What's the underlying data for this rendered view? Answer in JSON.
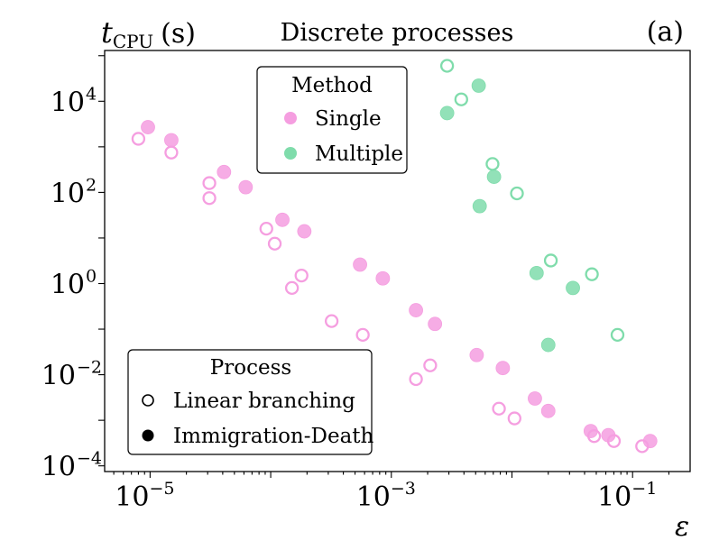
{
  "chart_data": {
    "type": "scatter",
    "title": "Discrete processes",
    "panel_label": "(a)",
    "ylabel": "t_CPU (s)",
    "ylabel_main": "t",
    "ylabel_sub": "CPU",
    "ylabel_unit": "(s)",
    "xlabel": "ε",
    "xscale": "log",
    "yscale": "log",
    "xlim": [
      4.2e-06,
      0.3
    ],
    "ylim": [
      7.5e-05,
      130000.0
    ],
    "x_ticks": [
      {
        "base": "10",
        "exp": "−5",
        "value": 1e-05
      },
      {
        "base": "10",
        "exp": "−3",
        "value": 0.001
      },
      {
        "base": "10",
        "exp": "−1",
        "value": 0.1
      }
    ],
    "y_ticks": [
      {
        "base": "10",
        "exp": "4",
        "value": 10000.0
      },
      {
        "base": "10",
        "exp": "2",
        "value": 100.0
      },
      {
        "base": "10",
        "exp": "0",
        "value": 1
      },
      {
        "base": "10",
        "exp": "−2",
        "value": 0.01
      },
      {
        "base": "10",
        "exp": "−4",
        "value": 0.0001
      }
    ],
    "colors": {
      "Single": "#f59ee0",
      "Multiple": "#7fdcab"
    },
    "legend_method": {
      "title": "Method",
      "entries": [
        "Single",
        "Multiple"
      ],
      "location": "upper-center"
    },
    "legend_process": {
      "title": "Process",
      "entries": [
        "Linear branching",
        "Immigration-Death"
      ],
      "location": "lower-left"
    },
    "series": [
      {
        "name": "Single / Linear branching",
        "method": "Single",
        "process": "Linear branching",
        "filled": false,
        "points": [
          [
            8e-06,
            1500
          ],
          [
            1.5e-05,
            750
          ],
          [
            3.1e-05,
            160
          ],
          [
            3.1e-05,
            75
          ],
          [
            9.2e-05,
            16
          ],
          [
            0.000108,
            7.5
          ],
          [
            0.00015,
            0.8
          ],
          [
            0.00018,
            1.5
          ],
          [
            0.00032,
            0.15
          ],
          [
            0.00058,
            0.075
          ],
          [
            0.0016,
            0.008
          ],
          [
            0.0021,
            0.016
          ],
          [
            0.0078,
            0.0018
          ],
          [
            0.0105,
            0.0011
          ],
          [
            0.048,
            0.00045
          ],
          [
            0.07,
            0.00035
          ],
          [
            0.12,
            0.00027
          ]
        ]
      },
      {
        "name": "Single / Immigration-Death",
        "method": "Single",
        "process": "Immigration-Death",
        "filled": true,
        "points": [
          [
            9.6e-06,
            2700
          ],
          [
            1.5e-05,
            1400
          ],
          [
            4.1e-05,
            280
          ],
          [
            6.2e-05,
            130
          ],
          [
            0.000125,
            25
          ],
          [
            0.00019,
            14
          ],
          [
            0.00055,
            2.6
          ],
          [
            0.00085,
            1.3
          ],
          [
            0.0016,
            0.26
          ],
          [
            0.0023,
            0.13
          ],
          [
            0.0051,
            0.027
          ],
          [
            0.0084,
            0.014
          ],
          [
            0.0155,
            0.003
          ],
          [
            0.02,
            0.0016
          ],
          [
            0.045,
            0.00058
          ],
          [
            0.063,
            0.00047
          ],
          [
            0.14,
            0.00035
          ]
        ]
      },
      {
        "name": "Multiple / Linear branching",
        "method": "Multiple",
        "process": "Linear branching",
        "filled": false,
        "points": [
          [
            0.0029,
            60000
          ],
          [
            0.0038,
            11000
          ],
          [
            0.0069,
            420
          ],
          [
            0.011,
            95
          ],
          [
            0.021,
            3.2
          ],
          [
            0.046,
            1.6
          ],
          [
            0.075,
            0.075
          ]
        ]
      },
      {
        "name": "Multiple / Immigration-Death",
        "method": "Multiple",
        "process": "Immigration-Death",
        "filled": true,
        "points": [
          [
            0.0029,
            5500
          ],
          [
            0.0053,
            22000
          ],
          [
            0.0071,
            220
          ],
          [
            0.0054,
            50
          ],
          [
            0.016,
            1.7
          ],
          [
            0.032,
            0.8
          ],
          [
            0.02,
            0.045
          ]
        ]
      }
    ]
  }
}
